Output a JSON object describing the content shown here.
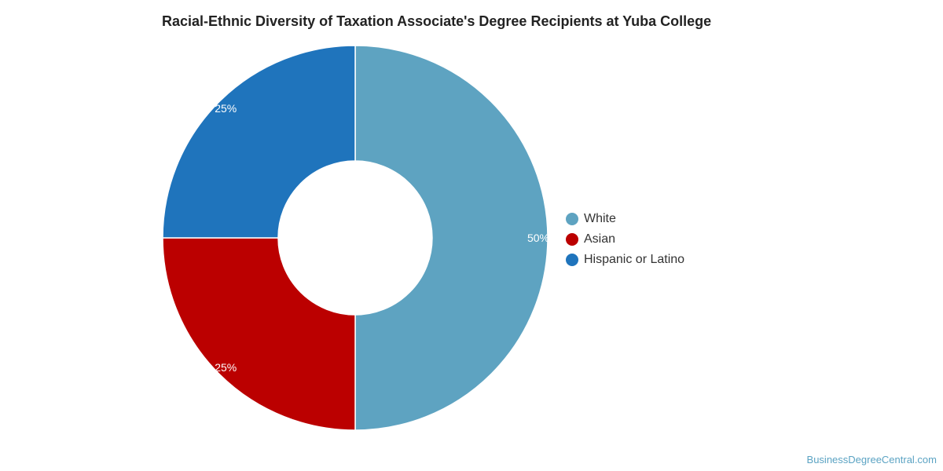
{
  "chart_data": {
    "type": "pie",
    "variant": "donut",
    "title": "Racial-Ethnic Diversity of Taxation Associate's Degree Recipients at Yuba College",
    "categories": [
      "White",
      "Asian",
      "Hispanic or Latino"
    ],
    "values": [
      50,
      25,
      25
    ],
    "labels": [
      "50%",
      "25%",
      "25%"
    ],
    "colors": [
      "#5ea3c1",
      "#bb0000",
      "#1f74bc"
    ],
    "legend_position": "right"
  },
  "footer": {
    "credit": "BusinessDegreeCentral.com"
  }
}
